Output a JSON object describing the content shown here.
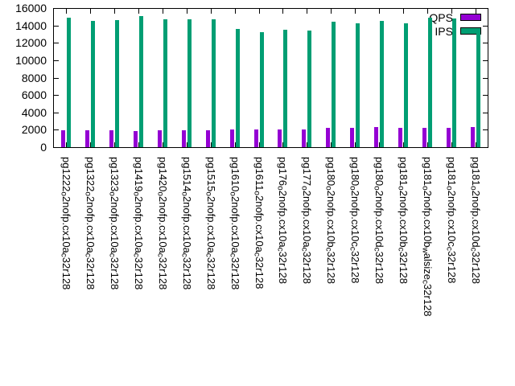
{
  "chart_data": {
    "type": "bar",
    "title": "",
    "xlabel": "",
    "ylabel": "",
    "grid": false,
    "legend_position": "top-right inside plot",
    "ylim": [
      0,
      16000
    ],
    "yticks": [
      0,
      2000,
      4000,
      6000,
      8000,
      10000,
      12000,
      14000,
      16000
    ],
    "categories": [
      [
        {
          "text": "pg1222"
        },
        {
          "text": "o",
          "sub": true
        },
        {
          "text": "2nofp.cx10a"
        },
        {
          "text": "c",
          "sub": true
        },
        {
          "text": "32r128"
        }
      ],
      [
        {
          "text": "pg1322"
        },
        {
          "text": "o",
          "sub": true
        },
        {
          "text": "2nofp.cx10a"
        },
        {
          "text": "c",
          "sub": true
        },
        {
          "text": "32r128"
        }
      ],
      [
        {
          "text": "pg1323"
        },
        {
          "text": "o",
          "sub": true
        },
        {
          "text": "2nofp.cx10a"
        },
        {
          "text": "c",
          "sub": true
        },
        {
          "text": "32r128"
        }
      ],
      [
        {
          "text": "pg1419"
        },
        {
          "text": "o",
          "sub": true
        },
        {
          "text": "2nofp.cx10a"
        },
        {
          "text": "c",
          "sub": true
        },
        {
          "text": "32r128"
        }
      ],
      [
        {
          "text": "pg1420"
        },
        {
          "text": "o",
          "sub": true
        },
        {
          "text": "2nofp.cx10a"
        },
        {
          "text": "c",
          "sub": true
        },
        {
          "text": "32r128"
        }
      ],
      [
        {
          "text": "pg1514"
        },
        {
          "text": "o",
          "sub": true
        },
        {
          "text": "2nofp.cx10a"
        },
        {
          "text": "c",
          "sub": true
        },
        {
          "text": "32r128"
        }
      ],
      [
        {
          "text": "pg1515"
        },
        {
          "text": "o",
          "sub": true
        },
        {
          "text": "2nofp.cx10a"
        },
        {
          "text": "c",
          "sub": true
        },
        {
          "text": "32r128"
        }
      ],
      [
        {
          "text": "pg1610"
        },
        {
          "text": "o",
          "sub": true
        },
        {
          "text": "2nofp.cx10a"
        },
        {
          "text": "c",
          "sub": true
        },
        {
          "text": "32r128"
        }
      ],
      [
        {
          "text": "pg1611"
        },
        {
          "text": "o",
          "sub": true
        },
        {
          "text": "2nofp.cx10a"
        },
        {
          "text": "c",
          "sub": true
        },
        {
          "text": "32r128"
        }
      ],
      [
        {
          "text": "pg176"
        },
        {
          "text": "o",
          "sub": true
        },
        {
          "text": "2nofp.cx10a"
        },
        {
          "text": "c",
          "sub": true
        },
        {
          "text": "32r128"
        }
      ],
      [
        {
          "text": "pg177"
        },
        {
          "text": "o",
          "sub": true
        },
        {
          "text": "2nofp.cx10a"
        },
        {
          "text": "c",
          "sub": true
        },
        {
          "text": "32r128"
        }
      ],
      [
        {
          "text": "pg180"
        },
        {
          "text": "o",
          "sub": true
        },
        {
          "text": "2nofp.cx10b"
        },
        {
          "text": "c",
          "sub": true
        },
        {
          "text": "32r128"
        }
      ],
      [
        {
          "text": "pg180"
        },
        {
          "text": "o",
          "sub": true
        },
        {
          "text": "2nofp.cx10c"
        },
        {
          "text": "c",
          "sub": true
        },
        {
          "text": "32r128"
        }
      ],
      [
        {
          "text": "pg180"
        },
        {
          "text": "o",
          "sub": true
        },
        {
          "text": "2nofp.cx10d"
        },
        {
          "text": "c",
          "sub": true
        },
        {
          "text": "32r128"
        }
      ],
      [
        {
          "text": "pg181"
        },
        {
          "text": "o",
          "sub": true
        },
        {
          "text": "2nofp.cx10b"
        },
        {
          "text": "c",
          "sub": true
        },
        {
          "text": "32r128"
        }
      ],
      [
        {
          "text": "pg181"
        },
        {
          "text": "o",
          "sub": true
        },
        {
          "text": "2nofp.cx10b"
        },
        {
          "text": "w",
          "sub": true
        },
        {
          "text": "alsize"
        },
        {
          "text": "c",
          "sub": true
        },
        {
          "text": "32r128"
        }
      ],
      [
        {
          "text": "pg181"
        },
        {
          "text": "o",
          "sub": true
        },
        {
          "text": "2nofp.cx10c"
        },
        {
          "text": "c",
          "sub": true
        },
        {
          "text": "32r128"
        }
      ],
      [
        {
          "text": "pg181"
        },
        {
          "text": "o",
          "sub": true
        },
        {
          "text": "2nofp.cx10d"
        },
        {
          "text": "c",
          "sub": true
        },
        {
          "text": "32r128"
        }
      ]
    ],
    "series": [
      {
        "name": "QPS",
        "color": "#9400d3",
        "values": [
          1900,
          1900,
          1950,
          1850,
          1900,
          1950,
          1950,
          2000,
          2000,
          2050,
          2050,
          2250,
          2250,
          2300,
          2200,
          2250,
          2250,
          2300
        ]
      },
      {
        "name": "IPS",
        "color": "#009e73",
        "values": [
          14900,
          14500,
          14600,
          15100,
          14700,
          14700,
          14700,
          13600,
          13200,
          13500,
          13400,
          14400,
          14200,
          14500,
          14200,
          14900,
          14800,
          13500
        ]
      }
    ]
  }
}
